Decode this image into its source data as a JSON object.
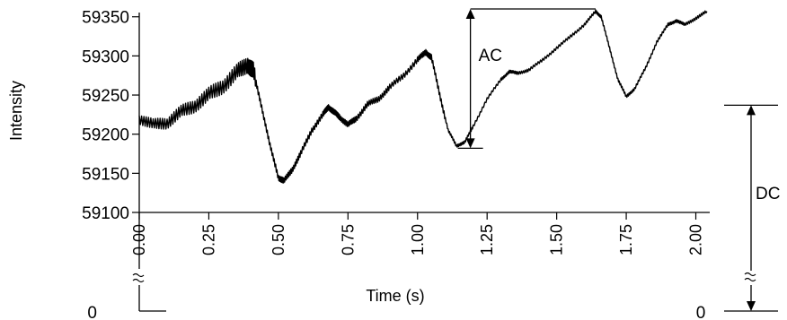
{
  "chart_data": {
    "type": "line",
    "xlabel": "Time (s)",
    "ylabel": "Intensity",
    "xlim": [
      0,
      2.05
    ],
    "ylim": [
      59100,
      59360
    ],
    "x_ticks": [
      "0.00",
      "0.25",
      "0.50",
      "0.75",
      "1.00",
      "1.25",
      "1.50",
      "1.75",
      "2.00"
    ],
    "y_ticks": [
      "59100",
      "59150",
      "59200",
      "59250",
      "59300",
      "59350"
    ],
    "y_zero_label": "0",
    "grid": false,
    "annotations": {
      "ac": {
        "label": "AC",
        "x": 1.19,
        "from": 59182,
        "to": 59360
      },
      "dc": {
        "label": "DC",
        "zero_label": "0",
        "from": 0,
        "to": 59237
      }
    },
    "series": [
      {
        "color": "#000000",
        "points": [
          [
            0.0,
            59220
          ],
          [
            0.05,
            59212
          ],
          [
            0.1,
            59215
          ],
          [
            0.15,
            59228
          ],
          [
            0.2,
            59237
          ],
          [
            0.25,
            59250
          ],
          [
            0.3,
            59262
          ],
          [
            0.35,
            59278
          ],
          [
            0.39,
            59290
          ],
          [
            0.41,
            59280
          ],
          [
            0.44,
            59235
          ],
          [
            0.47,
            59185
          ],
          [
            0.5,
            59145
          ],
          [
            0.52,
            59140
          ],
          [
            0.55,
            59155
          ],
          [
            0.58,
            59175
          ],
          [
            0.62,
            59205
          ],
          [
            0.66,
            59225
          ],
          [
            0.68,
            59235
          ],
          [
            0.7,
            59228
          ],
          [
            0.72,
            59222
          ],
          [
            0.75,
            59212
          ],
          [
            0.78,
            59220
          ],
          [
            0.82,
            59238
          ],
          [
            0.86,
            59245
          ],
          [
            0.9,
            59260
          ],
          [
            0.95,
            59275
          ],
          [
            1.0,
            59295
          ],
          [
            1.03,
            59305
          ],
          [
            1.05,
            59298
          ],
          [
            1.08,
            59250
          ],
          [
            1.11,
            59205
          ],
          [
            1.14,
            59185
          ],
          [
            1.17,
            59190
          ],
          [
            1.2,
            59210
          ],
          [
            1.25,
            59245
          ],
          [
            1.3,
            59270
          ],
          [
            1.33,
            59280
          ],
          [
            1.36,
            59278
          ],
          [
            1.4,
            59282
          ],
          [
            1.45,
            59295
          ],
          [
            1.5,
            59310
          ],
          [
            1.55,
            59325
          ],
          [
            1.6,
            59340
          ],
          [
            1.64,
            59357
          ],
          [
            1.66,
            59350
          ],
          [
            1.69,
            59310
          ],
          [
            1.72,
            59270
          ],
          [
            1.75,
            59248
          ],
          [
            1.78,
            59258
          ],
          [
            1.82,
            59285
          ],
          [
            1.86,
            59318
          ],
          [
            1.9,
            59340
          ],
          [
            1.93,
            59345
          ],
          [
            1.96,
            59340
          ],
          [
            2.0,
            59348
          ],
          [
            2.04,
            59357
          ]
        ]
      }
    ]
  }
}
